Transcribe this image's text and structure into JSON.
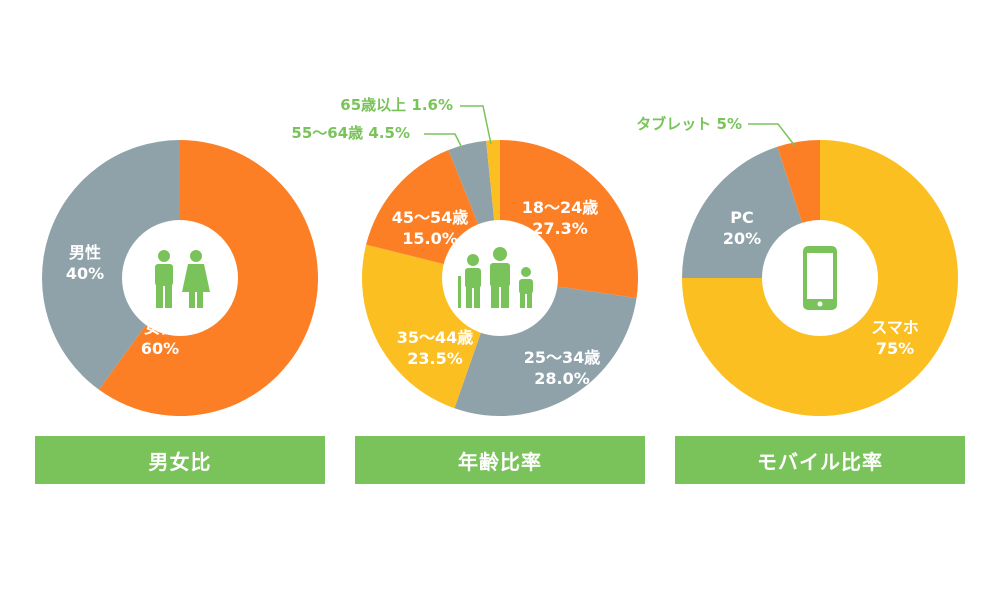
{
  "colors": {
    "orange": "#fc7f26",
    "gray": "#8fa2aa",
    "yellow": "#fcbf22",
    "green": "#7ac35a",
    "white": "#ffffff"
  },
  "chart_data": [
    {
      "type": "pie",
      "title": "男女比",
      "icon": "male-female-icon",
      "slices": [
        {
          "name": "女性",
          "value": 60,
          "label": "60%",
          "color": "#fc7f26"
        },
        {
          "name": "男性",
          "value": 40,
          "label": "40%",
          "color": "#8fa2aa"
        }
      ]
    },
    {
      "type": "pie",
      "title": "年齢比率",
      "icon": "family-icon",
      "slices": [
        {
          "name": "18〜24歳",
          "value": 27.3,
          "label": "27.3%",
          "color": "#fc7f26"
        },
        {
          "name": "25〜34歳",
          "value": 28.0,
          "label": "28.0%",
          "color": "#8fa2aa"
        },
        {
          "name": "35〜44歳",
          "value": 23.5,
          "label": "23.5%",
          "color": "#fcbf22"
        },
        {
          "name": "45〜54歳",
          "value": 15.0,
          "label": "15.0%",
          "color": "#fc7f26"
        },
        {
          "name": "55〜64歳",
          "value": 4.5,
          "label": "4.5%",
          "color": "#8fa2aa"
        },
        {
          "name": "65歳以上",
          "value": 1.6,
          "label": "1.6%",
          "color": "#fcbf22"
        }
      ]
    },
    {
      "type": "pie",
      "title": "モバイル比率",
      "icon": "smartphone-icon",
      "slices": [
        {
          "name": "スマホ",
          "value": 75,
          "label": "75%",
          "color": "#fcbf22"
        },
        {
          "name": "PC",
          "value": 20,
          "label": "20%",
          "color": "#8fa2aa"
        },
        {
          "name": "タブレット",
          "value": 5,
          "label": "5%",
          "color": "#fc7f26"
        }
      ]
    }
  ]
}
